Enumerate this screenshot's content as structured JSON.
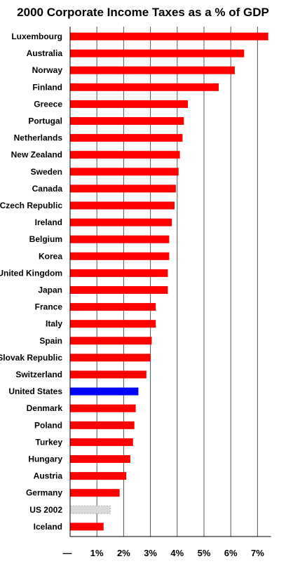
{
  "chart_data": {
    "type": "bar",
    "orientation": "horizontal",
    "title": "2000 Corporate Income Taxes as a % of GDP",
    "xlabel": "",
    "ylabel": "",
    "xlim": [
      0,
      7.5
    ],
    "grid": "vertical",
    "colors": {
      "default": "#ff0000",
      "highlight": "#0000ff",
      "projected": "#d9d9d9"
    },
    "x_ticks": [
      "—",
      "1%",
      "2%",
      "3%",
      "4%",
      "5%",
      "6%",
      "7%"
    ],
    "categories": [
      "Luxembourg",
      "Australia",
      "Norway",
      "Finland",
      "Greece",
      "Portugal",
      "Netherlands",
      "New Zealand",
      "Sweden",
      "Canada",
      "Czech Republic",
      "Ireland",
      "Belgium",
      "Korea",
      "United Kingdom",
      "Japan",
      "France",
      "Italy",
      "Spain",
      "Slovak Republic",
      "Switzerland",
      "United States",
      "Denmark",
      "Poland",
      "Turkey",
      "Hungary",
      "Austria",
      "Germany",
      "US 2002",
      "Iceland"
    ],
    "values": [
      7.4,
      6.5,
      6.15,
      5.55,
      4.4,
      4.25,
      4.2,
      4.1,
      4.05,
      3.95,
      3.9,
      3.8,
      3.7,
      3.7,
      3.65,
      3.65,
      3.2,
      3.2,
      3.05,
      3.0,
      2.85,
      2.55,
      2.45,
      2.4,
      2.35,
      2.25,
      2.1,
      1.85,
      1.5,
      1.25
    ],
    "bar_styles": {
      "United States": "highlight",
      "US 2002": "projected"
    }
  }
}
